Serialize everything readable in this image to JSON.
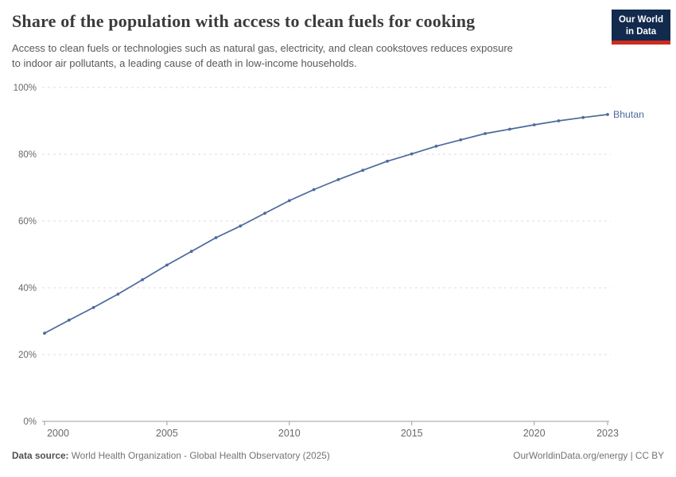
{
  "header": {
    "title": "Share of the population with access to clean fuels for cooking",
    "subtitle_line1": "Access to clean fuels or technologies such as natural gas, electricity, and clean cookstoves reduces exposure",
    "subtitle_line2": "to indoor air pollutants, a leading cause of death in low-income households.",
    "logo": {
      "line1": "Our World",
      "line2": "in Data"
    }
  },
  "chart_data": {
    "type": "line",
    "title": "Share of the population with access to clean fuels for cooking",
    "xlabel": "",
    "ylabel": "",
    "xlim": [
      2000,
      2023
    ],
    "ylim": [
      0,
      100
    ],
    "grid": "horizontal-dashed",
    "legend_position": "end-of-line-label",
    "x_ticks": [
      2000,
      2005,
      2010,
      2015,
      2020,
      2023
    ],
    "x_tick_labels": [
      "2000",
      "2005",
      "2010",
      "2015",
      "2020",
      "2023"
    ],
    "y_ticks": [
      0,
      20,
      40,
      60,
      80,
      100
    ],
    "y_tick_labels": [
      "0%",
      "20%",
      "40%",
      "60%",
      "80%",
      "100%"
    ],
    "series": [
      {
        "name": "Bhutan",
        "color": "#4C6A9C",
        "x": [
          2000,
          2001,
          2002,
          2003,
          2004,
          2005,
          2006,
          2007,
          2008,
          2009,
          2010,
          2011,
          2012,
          2013,
          2014,
          2015,
          2016,
          2017,
          2018,
          2019,
          2020,
          2021,
          2022,
          2023
        ],
        "values": [
          26.4,
          30.3,
          34.1,
          38.1,
          42.4,
          46.8,
          50.9,
          55.0,
          58.5,
          62.3,
          66.1,
          69.4,
          72.4,
          75.2,
          77.9,
          80.1,
          82.4,
          84.3,
          86.2,
          87.5,
          88.8,
          90.0,
          91.0,
          91.9
        ]
      }
    ]
  },
  "footer": {
    "datasource_label": "Data source:",
    "datasource_text": " World Health Organization - Global Health Observatory (2025)",
    "license_text": "OurWorldinData.org/energy | CC BY"
  },
  "colors": {
    "line": "#4C6A9C",
    "grid": "#dddddd",
    "axis": "#9e9e9e",
    "tick_text": "#696969",
    "logo_bg": "#122a4d",
    "logo_accent": "#cd2b1e"
  }
}
